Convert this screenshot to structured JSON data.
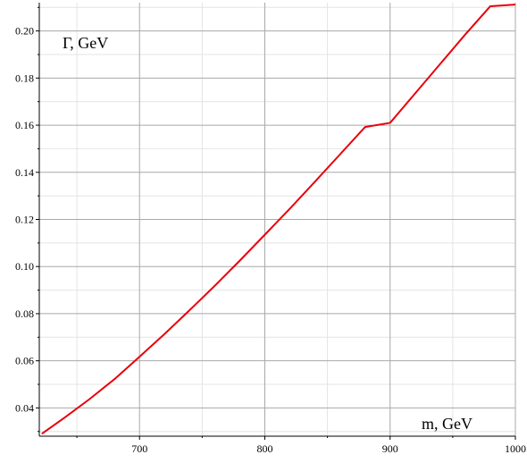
{
  "chart_data": {
    "type": "line",
    "title": "",
    "xlabel": "m, GeV",
    "ylabel": "Γ, GeV",
    "xlim": [
      620,
      1000
    ],
    "ylim": [
      0.028,
      0.212
    ],
    "x_ticks": [
      {
        "value": 700,
        "label": "700"
      },
      {
        "value": 800,
        "label": "800"
      },
      {
        "value": 900,
        "label": "900"
      },
      {
        "value": 1000,
        "label": "1000"
      }
    ],
    "y_ticks": [
      {
        "value": 0.04,
        "label": "0.04"
      },
      {
        "value": 0.06,
        "label": "0.06"
      },
      {
        "value": 0.08,
        "label": "0.08"
      },
      {
        "value": 0.1,
        "label": "0.10"
      },
      {
        "value": 0.12,
        "label": "0.12"
      },
      {
        "value": 0.14,
        "label": "0.14"
      },
      {
        "value": 0.16,
        "label": "0.16"
      },
      {
        "value": 0.18,
        "label": "0.18"
      },
      {
        "value": 0.2,
        "label": "0.20"
      }
    ],
    "x_minor_grid": [
      650,
      750,
      850,
      950
    ],
    "y_minor_grid": [
      0.03,
      0.05,
      0.07,
      0.09,
      0.11,
      0.13,
      0.15,
      0.17,
      0.19,
      0.21
    ],
    "grid": true,
    "series": [
      {
        "color": "#e8000b",
        "x": [
          622,
          640,
          660,
          680,
          700,
          720,
          740,
          760,
          780,
          800,
          820,
          840,
          860,
          880,
          900,
          920,
          940,
          960,
          980,
          1000
        ],
        "y": [
          0.029,
          0.0358,
          0.0437,
          0.0522,
          0.0617,
          0.0714,
          0.0815,
          0.0918,
          0.1025,
          0.1135,
          0.1246,
          0.136,
          0.1476,
          0.1592,
          0.161,
          0.1735,
          0.186,
          0.1985,
          0.2105,
          0.2112
        ]
      }
    ]
  }
}
